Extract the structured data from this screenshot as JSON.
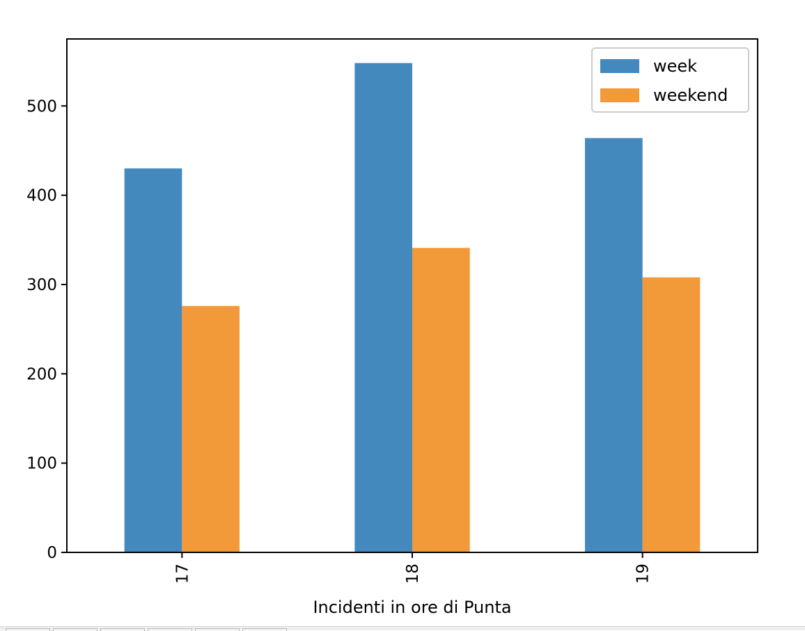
{
  "chart_data": {
    "type": "bar",
    "title": "",
    "xlabel": "Incidenti in ore di Punta",
    "ylabel": "",
    "categories": [
      "17",
      "18",
      "19"
    ],
    "series": [
      {
        "name": "week",
        "values": [
          430,
          548,
          464
        ],
        "color": "#4389bd"
      },
      {
        "name": "weekend",
        "values": [
          276,
          341,
          308
        ],
        "color": "#f2993a"
      }
    ],
    "ylim": [
      0,
      575
    ],
    "yticks": [
      0,
      100,
      200,
      300,
      400,
      500
    ],
    "legend_position": "top-right",
    "grid": false
  }
}
